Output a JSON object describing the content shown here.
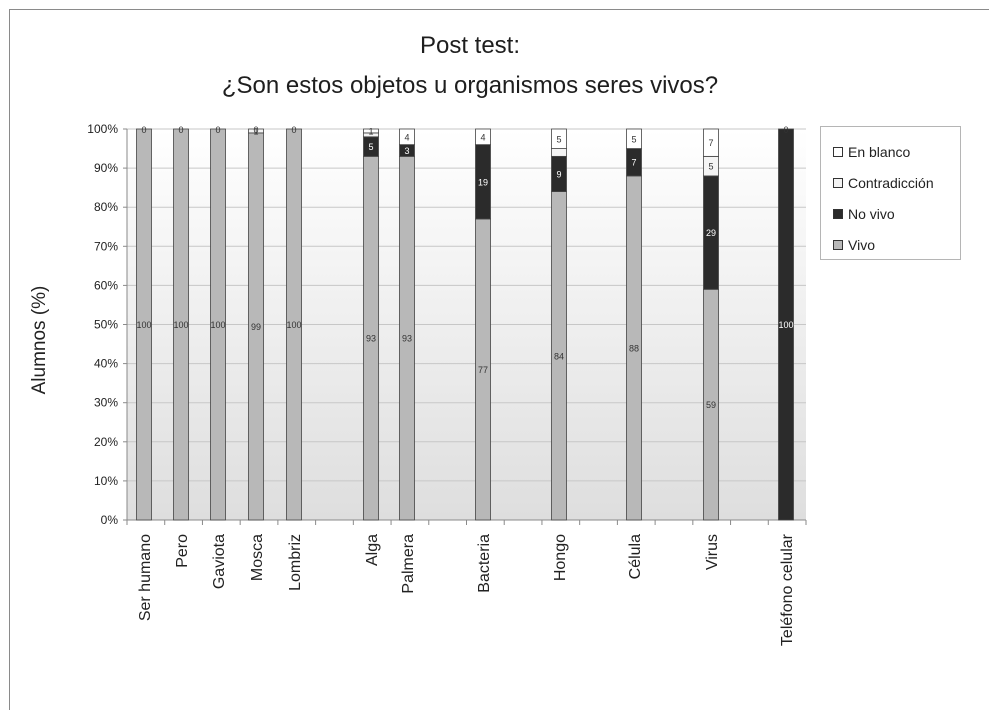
{
  "chart_data": {
    "type": "bar",
    "stacked": true,
    "title": "Post test:",
    "subtitle": "¿Son estos objetos u organismos seres vivos?",
    "xlabel": "",
    "ylabel": "Alumnos (%)",
    "ylim": [
      0,
      100
    ],
    "yticks": [
      "0%",
      "10%",
      "20%",
      "30%",
      "40%",
      "50%",
      "60%",
      "70%",
      "80%",
      "90%",
      "100%"
    ],
    "categories": [
      "Ser humano",
      "Pero",
      "Gaviota",
      "Mosca",
      "Lombriz",
      "Alga",
      "Palmera",
      "Bacteria",
      "Hongo",
      "Célula",
      "Virus",
      "Teléfono celular"
    ],
    "legend_position": "right",
    "series": [
      {
        "name": "Vivo",
        "color": "#b8b8b8",
        "values": [
          100,
          100,
          100,
          99,
          100,
          93,
          93,
          77,
          84,
          88,
          59,
          0
        ],
        "labels": [
          "100",
          "100",
          "100",
          "99",
          "100",
          "93",
          "93",
          "77",
          "84",
          "88",
          "59",
          ""
        ]
      },
      {
        "name": "No vivo",
        "color": "#2b2b2b",
        "values": [
          0,
          0,
          0,
          0,
          0,
          5,
          3,
          19,
          9,
          7,
          29,
          100
        ],
        "labels": [
          "",
          "",
          "",
          "",
          "",
          "5",
          "3",
          "19",
          "9",
          "7",
          "29",
          "100"
        ]
      },
      {
        "name": "Contradicción",
        "color": "#f4f4f4",
        "values": [
          0,
          0,
          0,
          1,
          0,
          1,
          0,
          0,
          2,
          0,
          5,
          0
        ],
        "labels": [
          "",
          "",
          "",
          "1",
          "",
          "",
          "",
          "",
          "",
          "",
          "5",
          ""
        ]
      },
      {
        "name": "En blanco",
        "color": "#ffffff",
        "values": [
          0,
          0,
          0,
          0,
          0,
          1,
          4,
          4,
          5,
          5,
          7,
          0
        ],
        "labels": [
          "0",
          "0",
          "0",
          "0",
          "0",
          "1",
          "4",
          "4",
          "5",
          "5",
          "7",
          "0"
        ]
      }
    ],
    "legend_order": [
      "En blanco",
      "Contradicción",
      "No vivo",
      "Vivo"
    ]
  }
}
